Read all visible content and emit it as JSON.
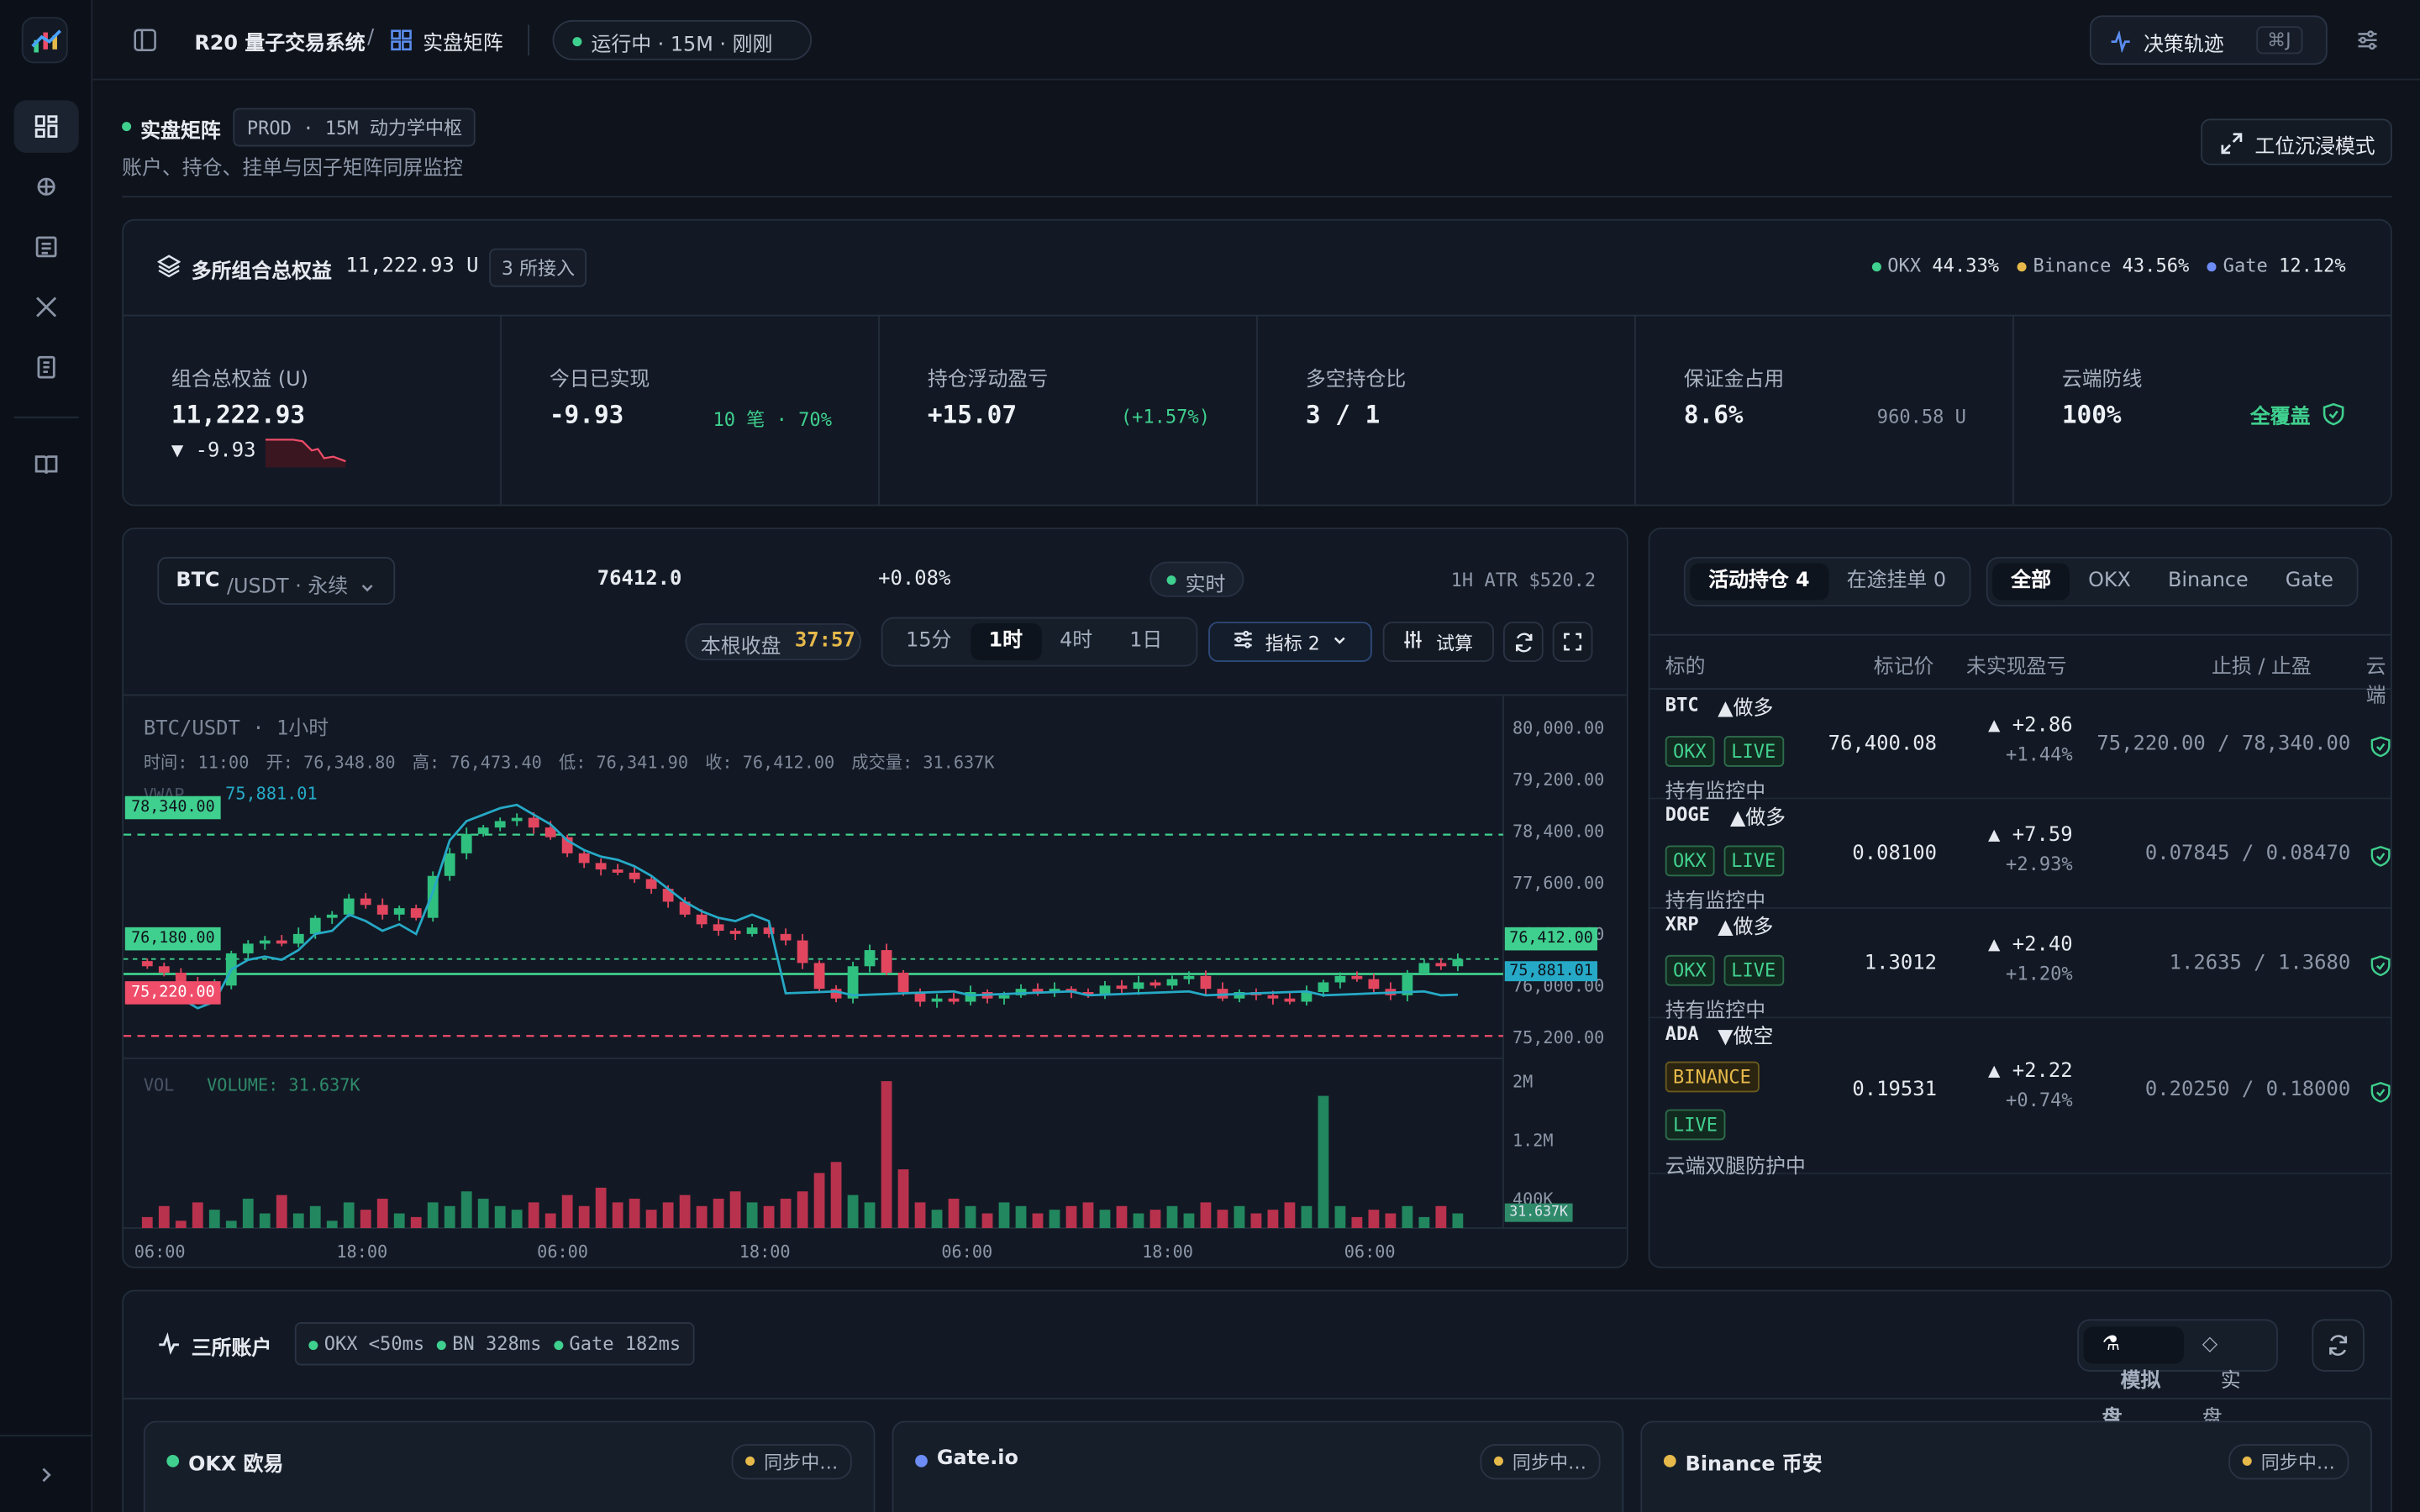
{
  "app": {
    "name": "R20 量子交易系统",
    "section": "实盘矩阵",
    "status": "运行中 · 15M · 刚刚",
    "decision_btn": "决策轨迹",
    "shortcut": "⌘J"
  },
  "page": {
    "title": "实盘矩阵",
    "badge": "PROD · 15M 动力学中枢",
    "subtitle": "账户、持仓、挂单与因子矩阵同屏监控",
    "immersive_btn": "工位沉浸模式"
  },
  "equity": {
    "title": "多所组合总权益",
    "total": "11,222.93 U",
    "exchanges_badge": "3 所接入",
    "shares": [
      {
        "name": "OKX",
        "pct": "44.33%",
        "color": "#3fcf8e"
      },
      {
        "name": "Binance",
        "pct": "43.56%",
        "color": "#e6b94a"
      },
      {
        "name": "Gate",
        "pct": "12.12%",
        "color": "#6d8cf5"
      }
    ],
    "kpis": [
      {
        "label": "组合总权益 (U)",
        "value": "11,222.93",
        "side": "▼ -9.93"
      },
      {
        "label": "今日已实现",
        "value": "-9.93",
        "side": "10 笔 · 70%"
      },
      {
        "label": "持仓浮动盈亏",
        "value": "+15.07",
        "side": "(+1.57%)"
      },
      {
        "label": "多空持仓比",
        "value": "3 / 1",
        "side": ""
      },
      {
        "label": "保证金占用",
        "value": "8.6%",
        "side": "960.58 U"
      },
      {
        "label": "云端防线",
        "value": "100%",
        "side": "全覆盖"
      }
    ]
  },
  "chart": {
    "symbol": "BTC",
    "pair": "/USDT · 永续",
    "price": "76412.0",
    "change": "+0.08%",
    "live": "实时",
    "atr": "1H ATR $520.2",
    "countdown_label": "本根收盘",
    "countdown": "37:57",
    "timeframes": [
      "15分",
      "1时",
      "4时",
      "1日"
    ],
    "active_tf": "1时",
    "indicator_btn": "指标 2",
    "trial_btn": "试算",
    "legend_title": "BTC/USDT · 1小时",
    "ohlc": "时间: 11:00　开: 76,348.80　高: 76,473.40　低: 76,341.90　收: 76,412.00　成交量: 31.637K",
    "vwap_label": "VWAP",
    "vwap_value": "75,881.01",
    "tp_label": "78,340.00",
    "entry_label": "76,180.00",
    "sl_label": "75,220.00",
    "price_tag": "76,412.00",
    "vwap_tag": "75,881.01",
    "vol_label": "VOL",
    "vol_value": "VOLUME: 31.637K",
    "vol_tag": "31.637K"
  },
  "chart_data": {
    "type": "candlestick",
    "title": "BTC/USDT · 1小时",
    "y_ticks": [
      "80,000.00",
      "79,200.00",
      "78,400.00",
      "77,600.00",
      "76,800.00",
      "76,000.00",
      "75,200.00"
    ],
    "x_ticks": [
      "06:00",
      "18:00",
      "06:00",
      "18:00",
      "06:00",
      "18:00",
      "06:00"
    ],
    "vol_ticks": [
      "2M",
      "1.2M",
      "400K"
    ],
    "levels": {
      "take_profit": 78340,
      "entry": 76180,
      "stop_loss": 75220,
      "last": 76412,
      "vwap": 75881.01
    },
    "ylim": [
      74800,
      80300
    ],
    "closes": [
      76300,
      76200,
      76050,
      75900,
      76000,
      76500,
      76650,
      76700,
      76650,
      76800,
      77050,
      77100,
      77350,
      77250,
      77100,
      77200,
      77050,
      77700,
      78050,
      78350,
      78450,
      78550,
      78600,
      78450,
      78300,
      78050,
      77900,
      77800,
      77750,
      77650,
      77500,
      77300,
      77100,
      76950,
      76850,
      76800,
      76900,
      76800,
      76700,
      76350,
      75950,
      75800,
      76300,
      76550,
      76200,
      75900,
      75750,
      75800,
      75750,
      75900,
      75800,
      75850,
      75950,
      75900,
      75950,
      75900,
      75850,
      76000,
      75950,
      76050,
      76000,
      76100,
      76150,
      75950,
      75800,
      75900,
      75850,
      75800,
      75750,
      75900,
      76050,
      76150,
      76100,
      75950,
      75850,
      76200,
      76350,
      76300,
      76412
    ],
    "volumes": [
      0.15,
      0.3,
      0.1,
      0.35,
      0.25,
      0.1,
      0.4,
      0.2,
      0.45,
      0.2,
      0.3,
      0.1,
      0.35,
      0.25,
      0.4,
      0.2,
      0.15,
      0.35,
      0.3,
      0.5,
      0.4,
      0.3,
      0.25,
      0.35,
      0.2,
      0.45,
      0.3,
      0.55,
      0.35,
      0.4,
      0.25,
      0.35,
      0.45,
      0.3,
      0.4,
      0.5,
      0.35,
      0.3,
      0.4,
      0.5,
      0.75,
      0.9,
      0.45,
      0.35,
      2.0,
      0.8,
      0.35,
      0.25,
      0.4,
      0.3,
      0.2,
      0.35,
      0.3,
      0.2,
      0.25,
      0.3,
      0.35,
      0.25,
      0.3,
      0.2,
      0.25,
      0.3,
      0.2,
      0.35,
      0.25,
      0.3,
      0.2,
      0.25,
      0.35,
      0.3,
      1.8,
      0.3,
      0.15,
      0.25,
      0.2,
      0.3,
      0.15,
      0.3,
      0.2
    ]
  },
  "positions": {
    "tabs": [
      {
        "label": "活动持仓 4",
        "on": true
      },
      {
        "label": "在途挂单 0",
        "on": false
      }
    ],
    "filters": [
      "全部",
      "OKX",
      "Binance",
      "Gate"
    ],
    "active_filter": "全部",
    "headers": [
      "标的",
      "标记价",
      "未实现盈亏",
      "止损 / 止盈",
      "云端"
    ],
    "rows": [
      {
        "symbol": "BTC",
        "side": "▲做多",
        "tags": [
          "OKX",
          "LIVE"
        ],
        "status": "持有监控中",
        "mark": "76,400.08",
        "pnl": "▲ +2.86",
        "pct": "+1.44%",
        "sltp": "75,220.00 / 78,340.00"
      },
      {
        "symbol": "DOGE",
        "side": "▲做多",
        "tags": [
          "OKX",
          "LIVE"
        ],
        "status": "持有监控中",
        "mark": "0.08100",
        "pnl": "▲ +7.59",
        "pct": "+2.93%",
        "sltp": "0.07845 / 0.08470"
      },
      {
        "symbol": "XRP",
        "side": "▲做多",
        "tags": [
          "OKX",
          "LIVE"
        ],
        "status": "持有监控中",
        "mark": "1.3012",
        "pnl": "▲ +2.40",
        "pct": "+1.20%",
        "sltp": "1.2635 / 1.3680"
      },
      {
        "symbol": "ADA",
        "side": "▼做空",
        "tags": [
          "BINANCE",
          "LIVE"
        ],
        "status": "云端双腿防护中",
        "mark": "0.19531",
        "pnl": "▲ +2.22",
        "pct": "+0.74%",
        "sltp": "0.20250 / 0.18000"
      }
    ]
  },
  "accounts": {
    "title": "三所账户",
    "latency": [
      "OKX <50ms",
      "BN 328ms",
      "Gate 182ms"
    ],
    "mode_sim": "模拟盘",
    "mode_real": "实盘",
    "cards": [
      {
        "name": "OKX 欧易",
        "status": "同步中…",
        "dot": "#3fcf8e"
      },
      {
        "name": "Gate.io",
        "status": "同步中…",
        "dot": "#6d8cf5"
      },
      {
        "name": "Binance 币安",
        "status": "同步中…",
        "dot": "#e6b94a"
      }
    ]
  }
}
